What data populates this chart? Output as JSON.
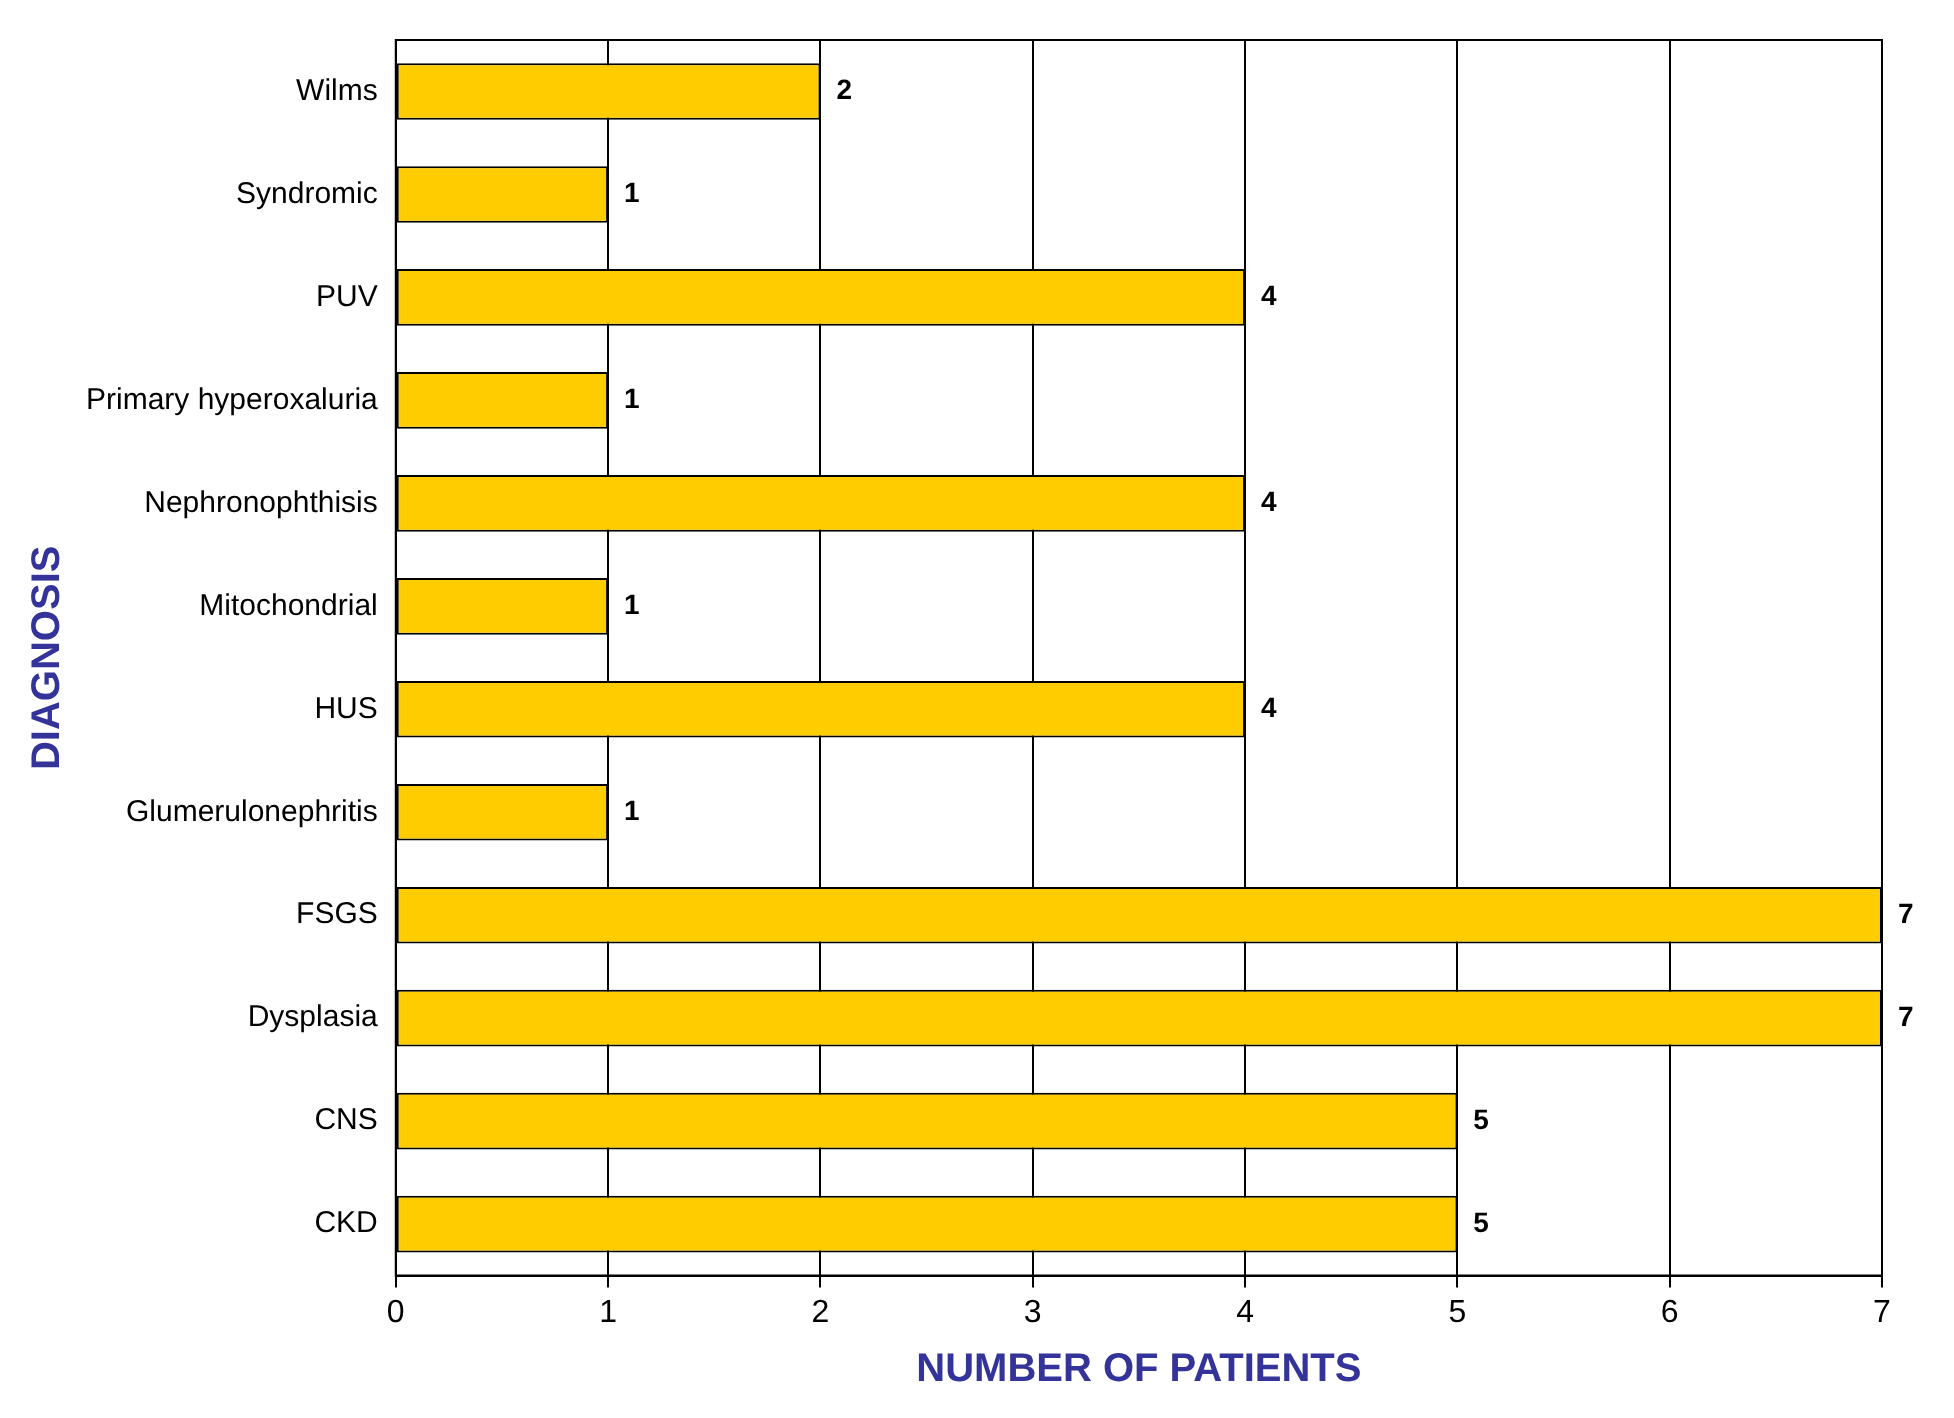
{
  "chart_data": {
    "type": "bar",
    "orientation": "horizontal",
    "xlabel": "NUMBER OF PATIENTS",
    "ylabel": "DIAGNOSIS",
    "categories": [
      "Wilms",
      "Syndromic",
      "PUV",
      "Primary hyperoxaluria",
      "Nephronophthisis",
      "Mitochondrial",
      "HUS",
      "Glumerulonephritis",
      "FSGS",
      "Dysplasia",
      "CNS",
      "CKD"
    ],
    "values": [
      2,
      1,
      4,
      1,
      4,
      1,
      4,
      1,
      7,
      7,
      5,
      5
    ],
    "color": "#ffcc00",
    "xlim": [
      0,
      7
    ],
    "xticks": [
      0,
      1,
      2,
      3,
      4,
      5,
      6,
      7
    ],
    "grid": "x",
    "data_labels": true,
    "legend": false
  }
}
